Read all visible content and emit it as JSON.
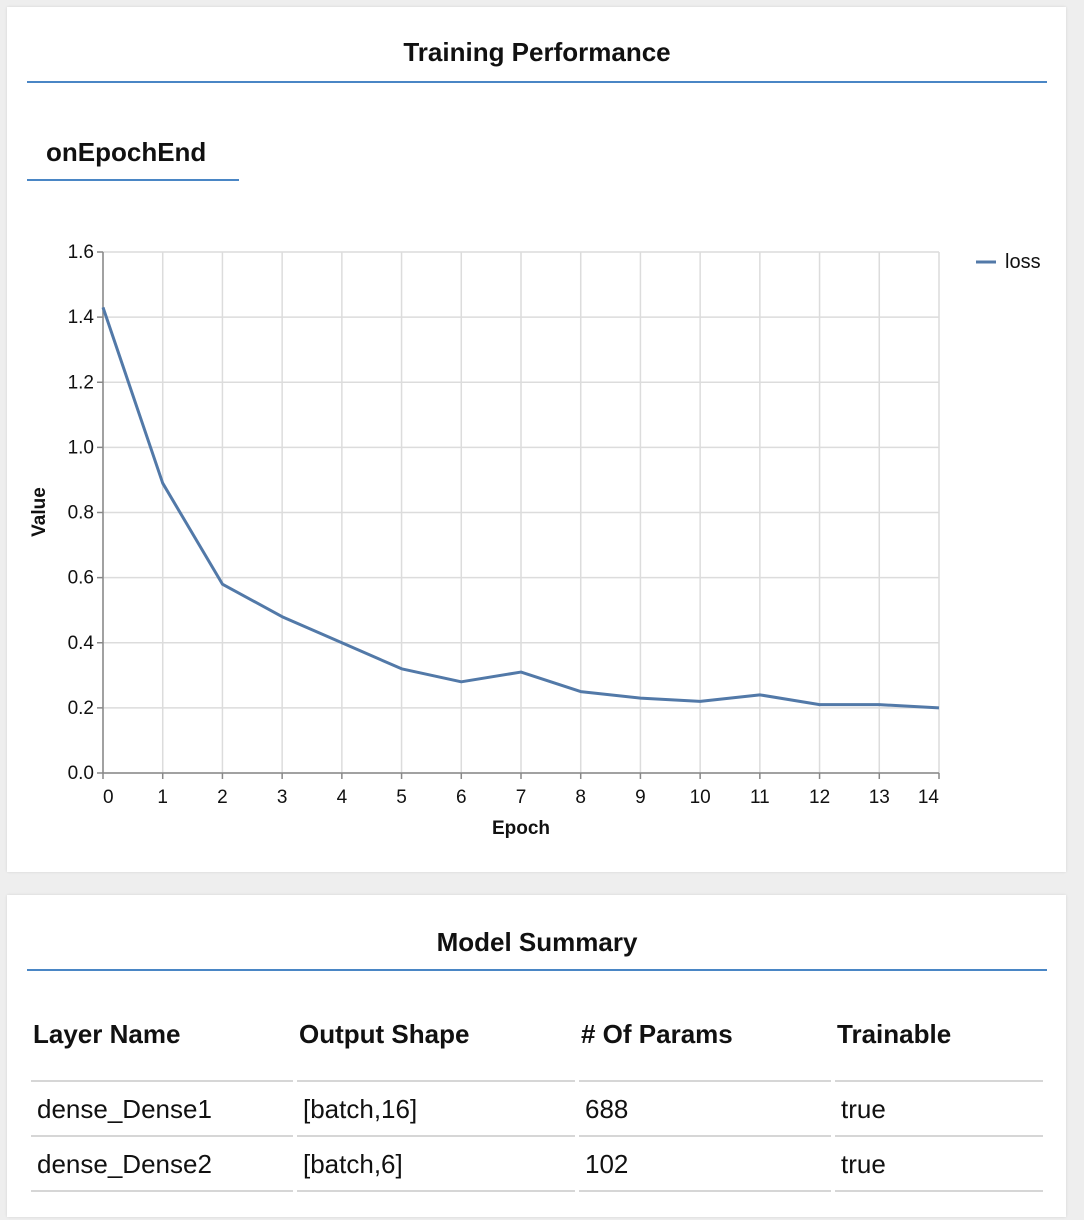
{
  "perf": {
    "title": "Training Performance",
    "tab_label": "onEpochEnd"
  },
  "chart_data": {
    "type": "line",
    "xlabel": "Epoch",
    "ylabel": "Value",
    "x": [
      0,
      1,
      2,
      3,
      4,
      5,
      6,
      7,
      8,
      9,
      10,
      11,
      12,
      13,
      14
    ],
    "series": [
      {
        "name": "loss",
        "color": "#5279a8",
        "values": [
          1.43,
          0.89,
          0.58,
          0.48,
          0.4,
          0.32,
          0.28,
          0.31,
          0.25,
          0.23,
          0.22,
          0.24,
          0.21,
          0.21,
          0.2
        ]
      }
    ],
    "xlim": [
      0,
      14
    ],
    "ylim": [
      0,
      1.6
    ],
    "yticks": [
      "0.0",
      "0.2",
      "0.4",
      "0.6",
      "0.8",
      "1.0",
      "1.2",
      "1.4",
      "1.6"
    ],
    "xticks": [
      "0",
      "1",
      "2",
      "3",
      "4",
      "5",
      "6",
      "7",
      "8",
      "9",
      "10",
      "11",
      "12",
      "13",
      "14"
    ],
    "grid": true,
    "legend": "top-right"
  },
  "summary": {
    "title": "Model Summary",
    "headers": [
      "Layer Name",
      "Output Shape",
      "# Of Params",
      "Trainable"
    ],
    "rows": [
      [
        "dense_Dense1",
        "[batch,16]",
        "688",
        "true"
      ],
      [
        "dense_Dense2",
        "[batch,6]",
        "102",
        "true"
      ]
    ]
  }
}
